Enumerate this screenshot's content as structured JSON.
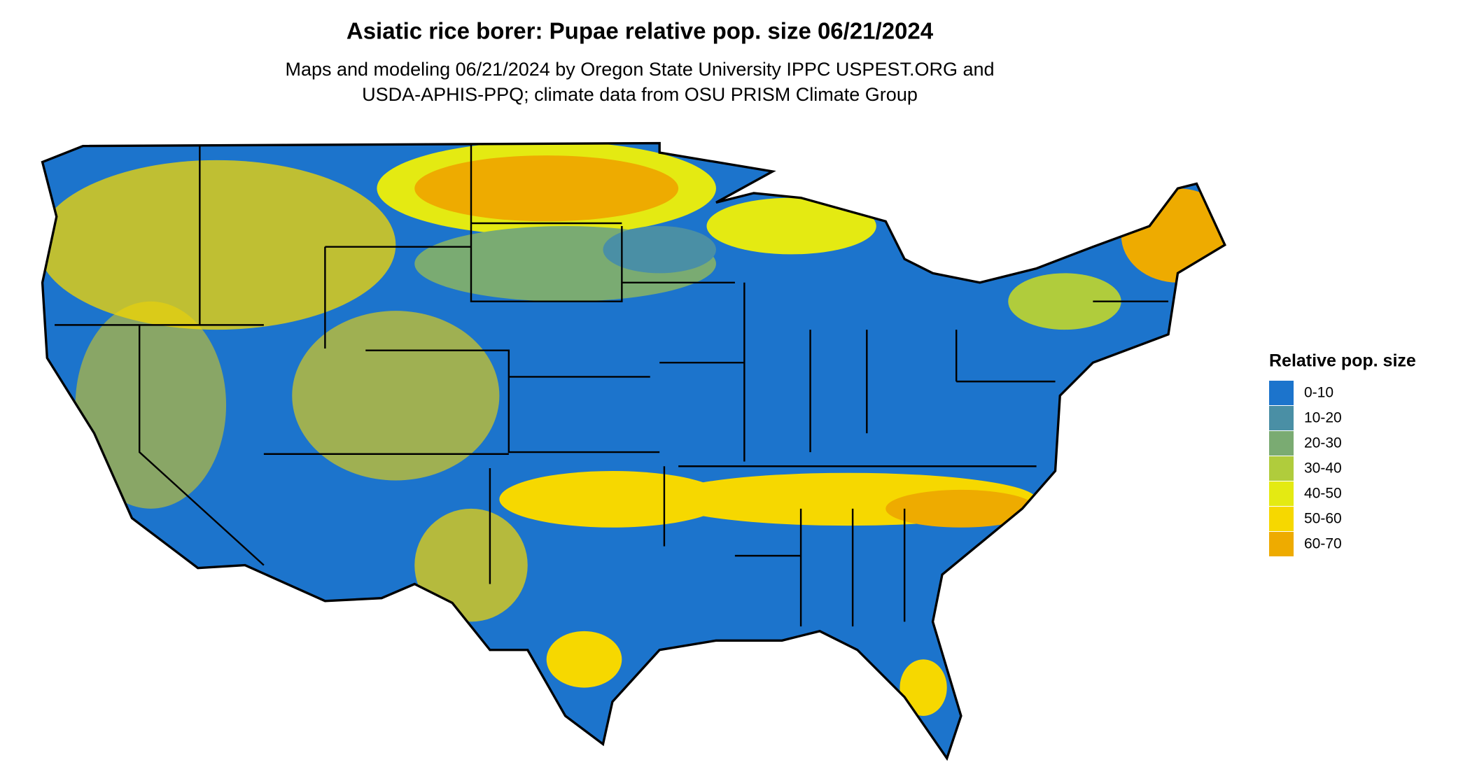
{
  "header": {
    "title": "Asiatic rice borer: Pupae relative pop. size 06/21/2024",
    "subtitle_lines": [
      "Maps and modeling 06/21/2024 by Oregon State University IPPC USPEST.ORG and",
      "USDA-APHIS-PPQ; climate data from OSU PRISM Climate Group"
    ]
  },
  "legend": {
    "title": "Relative pop. size",
    "items": [
      {
        "label": "0-10",
        "color": "#1c74cc"
      },
      {
        "label": "10-20",
        "color": "#4a8fa5"
      },
      {
        "label": "20-30",
        "color": "#7aab72"
      },
      {
        "label": "30-40",
        "color": "#b0cc3c"
      },
      {
        "label": "40-50",
        "color": "#e4ea12"
      },
      {
        "label": "50-60",
        "color": "#f6d800"
      },
      {
        "label": "60-70",
        "color": "#eeab00"
      }
    ]
  }
}
